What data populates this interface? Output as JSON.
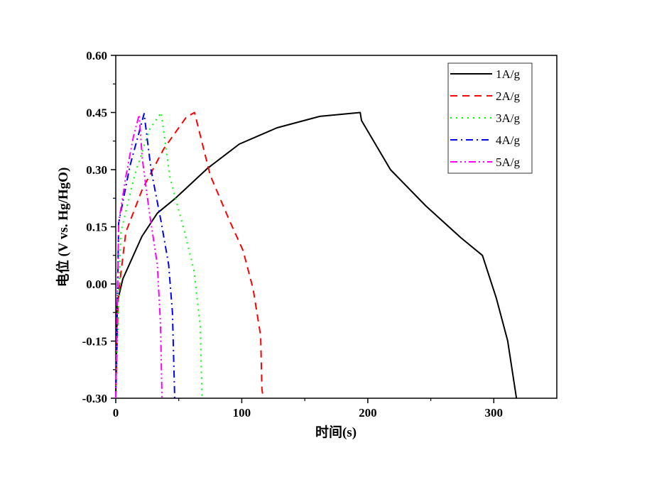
{
  "chart_data": {
    "type": "line",
    "title": "",
    "xlabel": "时间(s)",
    "ylabel": "电位 (V vs. Hg/HgO)",
    "xlim": [
      0,
      350
    ],
    "ylim": [
      -0.3,
      0.6
    ],
    "xticks": [
      "0",
      "100",
      "200",
      "300"
    ],
    "xtick_values": [
      0,
      100,
      200,
      300
    ],
    "yticks": [
      "-0.30",
      "-0.15",
      "0.00",
      "0.15",
      "0.30",
      "0.45",
      "0.60"
    ],
    "ytick_values": [
      -0.3,
      -0.15,
      0.0,
      0.15,
      0.3,
      0.45,
      0.6
    ],
    "legend_position": "top-right",
    "grid": false,
    "series": [
      {
        "name": "1A/g",
        "color": "#000000",
        "dash": "solid",
        "x": [
          0,
          1.1,
          5.6,
          20.8,
          33,
          47,
          73,
          98,
          128,
          162,
          194,
          195,
          218,
          246,
          274,
          291,
          302,
          311,
          318
        ],
        "y": [
          -0.3,
          -0.05,
          0.013,
          0.125,
          0.186,
          0.224,
          0.304,
          0.367,
          0.41,
          0.44,
          0.45,
          0.429,
          0.3,
          0.205,
          0.121,
          0.075,
          -0.037,
          -0.149,
          -0.3
        ]
      },
      {
        "name": "2A/g",
        "color": "#ff0000",
        "dash": "dash",
        "x": [
          0,
          2,
          8,
          21,
          38,
          56,
          62.5,
          75,
          90,
          101,
          109,
          115,
          116,
          117
        ],
        "y": [
          -0.3,
          -0.03,
          0.136,
          0.248,
          0.354,
          0.438,
          0.45,
          0.285,
          0.168,
          0.088,
          -0.013,
          -0.136,
          -0.276,
          -0.3
        ]
      },
      {
        "name": "3A/g",
        "color": "#00ff00",
        "dash": "dot",
        "x": [
          0,
          4,
          15,
          26.5,
          36,
          43,
          54.6,
          62,
          67,
          68.5
        ],
        "y": [
          -0.3,
          0.136,
          0.285,
          0.404,
          0.45,
          0.28,
          0.136,
          0.037,
          -0.11,
          -0.3
        ]
      },
      {
        "name": "4A/g",
        "color": "#0000ff",
        "dash": "dashdot",
        "x": [
          0,
          2.3,
          11.3,
          19,
          22.5,
          28,
          36,
          42,
          45,
          46.8
        ],
        "y": [
          -0.3,
          0.16,
          0.31,
          0.404,
          0.447,
          0.3,
          0.163,
          0.05,
          -0.075,
          -0.3
        ]
      },
      {
        "name": "5A/g",
        "color": "#ff00ff",
        "dash": "dashdotdot",
        "x": [
          0,
          2.3,
          7.9,
          14,
          18.6,
          21,
          26.5,
          33,
          35.5,
          36.7
        ],
        "y": [
          -0.3,
          0.16,
          0.28,
          0.386,
          0.444,
          0.33,
          0.192,
          0.05,
          -0.106,
          -0.3
        ]
      }
    ]
  }
}
